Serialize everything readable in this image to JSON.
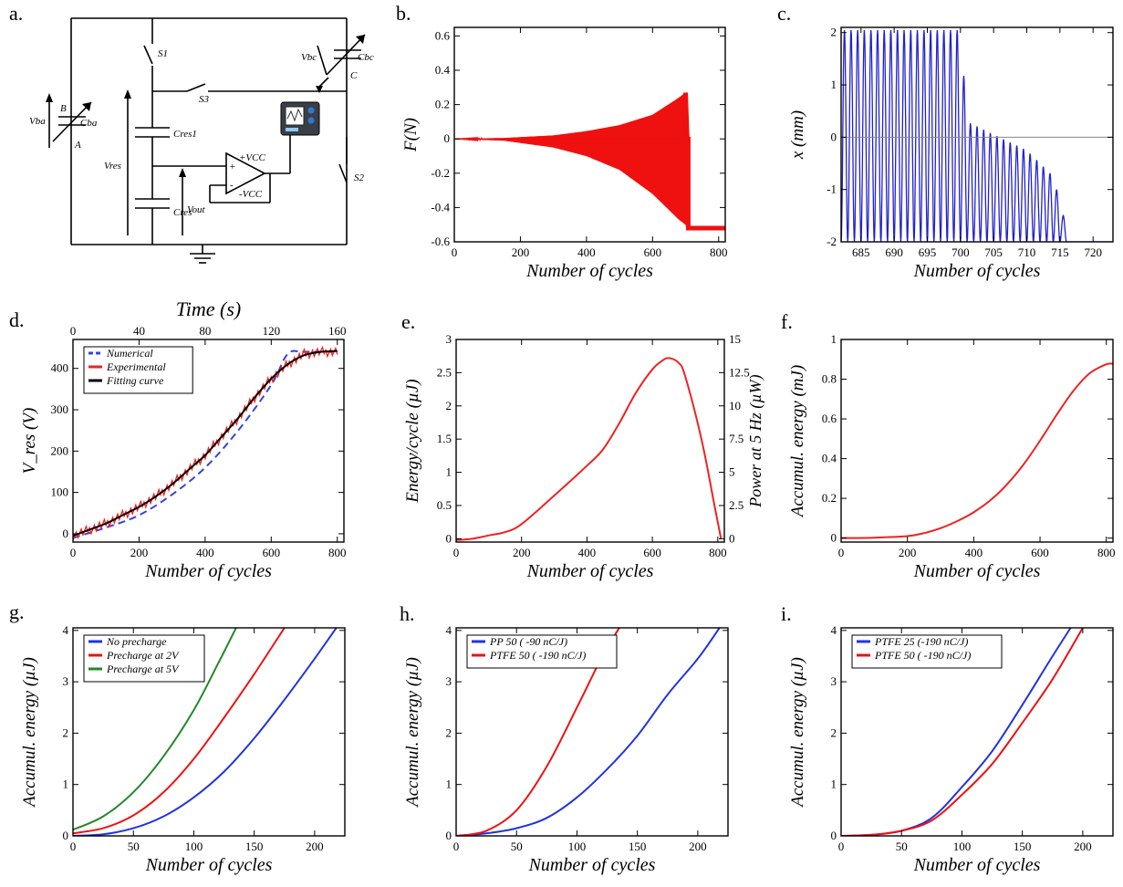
{
  "figure": {
    "panel_labels": [
      "a.",
      "b.",
      "c.",
      "d.",
      "e.",
      "f.",
      "g.",
      "h.",
      "i."
    ],
    "circuit": {
      "S1": "S1",
      "S2": "S2",
      "S3": "S3",
      "Vbc": "Vbc",
      "Cbc": "Cbc",
      "C": "C",
      "Vba": "Vba",
      "Cba": "Cba",
      "B": "B",
      "A": "A",
      "Cres1": "Cres1",
      "Vres": "Vres",
      "Cres": "Cres",
      "Vout": "Vout",
      "plusVcc": "+VCC",
      "minusVcc": "-VCC",
      "plus": "+",
      "minus": "-"
    }
  },
  "chart_data": [
    {
      "id": "b",
      "type": "area",
      "title": "",
      "xlabel": "Number of cycles",
      "ylabel": "F(N)",
      "xlim": [
        0,
        820
      ],
      "ylim": [
        -0.6,
        0.65
      ],
      "xticks": [
        0,
        200,
        400,
        600,
        800
      ],
      "yticks": [
        0.6,
        0.4,
        0.2,
        0,
        -0.2,
        -0.4,
        -0.6
      ],
      "grid": false,
      "color": "#ee1111",
      "envelope": {
        "x": [
          0,
          150,
          300,
          400,
          500,
          600,
          680,
          700,
          705,
          710,
          820
        ],
        "upper": [
          0,
          0.005,
          0.02,
          0.045,
          0.08,
          0.14,
          0.24,
          0.27,
          0.0,
          0.0,
          0.0
        ],
        "lower": [
          0,
          -0.01,
          -0.05,
          -0.1,
          -0.18,
          -0.32,
          -0.47,
          -0.5,
          -0.52,
          -0.52,
          -0.52
        ]
      }
    },
    {
      "id": "c",
      "type": "line",
      "title": "",
      "xlabel": "Number of cycles",
      "ylabel": "x (mm)",
      "xlim": [
        682,
        723
      ],
      "ylim": [
        -2,
        2.1
      ],
      "xticks": [
        685,
        690,
        695,
        700,
        705,
        710,
        715,
        720
      ],
      "yticks": [
        2,
        1,
        0,
        -1,
        -2
      ],
      "grid": false,
      "color": "#2222cc",
      "oscillation": {
        "x": [
          682,
          700,
          701,
          705,
          710,
          714,
          716.5,
          723
        ],
        "peak": [
          2.05,
          2.05,
          0.3,
          0.05,
          -0.25,
          -0.75,
          -2,
          -2
        ],
        "trough": [
          -2,
          -2,
          -2,
          -2,
          -2,
          -2,
          -2,
          -2
        ]
      }
    },
    {
      "id": "d",
      "type": "line",
      "title": "",
      "xlabel": "Number of cycles",
      "ylabel": "V_res (V)",
      "x2label": "Time (s)",
      "xlim": [
        0,
        820
      ],
      "ylim": [
        -20,
        470
      ],
      "xticks": [
        0,
        200,
        400,
        600,
        800
      ],
      "yticks": [
        400,
        300,
        200,
        100,
        0
      ],
      "x2ticks": [
        0,
        40,
        80,
        120,
        160
      ],
      "legend": "top-left",
      "grid": false,
      "series": [
        {
          "name": "Numerical",
          "color": "#3344dd",
          "x": [
            0,
            100,
            200,
            300,
            400,
            500,
            600,
            650,
            700,
            800
          ],
          "y": [
            -10,
            15,
            45,
            95,
            160,
            250,
            360,
            435,
            440,
            440
          ]
        },
        {
          "name": "Experimental",
          "color": "#ee2222",
          "x": [
            0,
            50,
            100,
            150,
            200,
            250,
            300,
            350,
            400,
            450,
            500,
            550,
            600,
            650,
            700,
            750,
            800
          ],
          "y": [
            -5,
            10,
            25,
            45,
            65,
            90,
            120,
            155,
            190,
            235,
            280,
            330,
            375,
            410,
            435,
            440,
            440
          ]
        },
        {
          "name": "Fitting curve",
          "color": "#000000",
          "x": [
            0,
            50,
            100,
            150,
            200,
            250,
            300,
            350,
            400,
            450,
            500,
            550,
            600,
            650,
            700,
            750,
            800
          ],
          "y": [
            -5,
            10,
            25,
            45,
            65,
            90,
            120,
            155,
            190,
            235,
            280,
            330,
            375,
            410,
            432,
            440,
            442
          ]
        }
      ]
    },
    {
      "id": "e",
      "type": "line",
      "title": "",
      "xlabel": "Number of cycles",
      "ylabel": "Energy/cycle (µJ)",
      "y2label": "Power at 5 Hz (µW)",
      "xlim": [
        0,
        820
      ],
      "ylim": [
        -0.05,
        3
      ],
      "xticks": [
        0,
        200,
        400,
        600,
        800
      ],
      "yticks": [
        3,
        2.5,
        2,
        1.5,
        1,
        0.5,
        0
      ],
      "y2ticks": [
        15,
        12.5,
        10,
        7.5,
        5,
        2.5,
        0
      ],
      "grid": false,
      "series": [
        {
          "name": "",
          "color": "#ee2222",
          "x": [
            0,
            50,
            100,
            150,
            200,
            300,
            400,
            450,
            500,
            550,
            600,
            630,
            650,
            680,
            700,
            750,
            790,
            810
          ],
          "y": [
            -0.02,
            0.0,
            0.05,
            0.1,
            0.22,
            0.65,
            1.1,
            1.35,
            1.75,
            2.2,
            2.55,
            2.68,
            2.72,
            2.65,
            2.45,
            1.5,
            0.5,
            0.0
          ]
        }
      ]
    },
    {
      "id": "f",
      "type": "line",
      "title": "",
      "xlabel": "Number of cycles",
      "ylabel": "Accumul. energy (mJ)",
      "xlim": [
        0,
        820
      ],
      "ylim": [
        -0.02,
        1.0
      ],
      "xticks": [
        0,
        200,
        400,
        600,
        800
      ],
      "yticks": [
        1,
        0.8,
        0.6,
        0.4,
        0.2,
        0
      ],
      "grid": false,
      "series": [
        {
          "name": "",
          "color": "#ee2222",
          "x": [
            0,
            100,
            200,
            250,
            300,
            350,
            400,
            450,
            500,
            550,
            600,
            650,
            700,
            750,
            800,
            820
          ],
          "y": [
            0,
            0.002,
            0.01,
            0.025,
            0.05,
            0.085,
            0.13,
            0.19,
            0.27,
            0.37,
            0.49,
            0.62,
            0.74,
            0.83,
            0.875,
            0.878
          ]
        }
      ]
    },
    {
      "id": "g",
      "type": "line",
      "title": "",
      "xlabel": "Number of cycles",
      "ylabel": "Accumul. energy (µJ)",
      "xlim": [
        0,
        225
      ],
      "ylim": [
        0,
        4.05
      ],
      "xticks": [
        0,
        50,
        100,
        150,
        200
      ],
      "yticks": [
        4,
        3,
        2,
        1,
        0
      ],
      "legend": "top-left",
      "grid": false,
      "series": [
        {
          "name": "No precharge",
          "color": "#2233dd",
          "x": [
            0,
            25,
            50,
            75,
            100,
            125,
            150,
            175,
            200,
            218
          ],
          "y": [
            0,
            0.03,
            0.15,
            0.38,
            0.75,
            1.25,
            1.9,
            2.65,
            3.45,
            4.05
          ]
        },
        {
          "name": "Precharge at 2V",
          "color": "#ee1111",
          "x": [
            0,
            25,
            50,
            75,
            100,
            125,
            150,
            175
          ],
          "y": [
            0.05,
            0.15,
            0.4,
            0.85,
            1.5,
            2.3,
            3.15,
            4.05
          ]
        },
        {
          "name": "Precharge at 5V",
          "color": "#22882a",
          "x": [
            0,
            25,
            50,
            75,
            100,
            120,
            135
          ],
          "y": [
            0.12,
            0.38,
            0.85,
            1.55,
            2.45,
            3.35,
            4.05
          ]
        }
      ]
    },
    {
      "id": "h",
      "type": "line",
      "title": "",
      "xlabel": "Number of cycles",
      "ylabel": "Accumul. energy (µJ)",
      "xlim": [
        0,
        225
      ],
      "ylim": [
        0,
        4.05
      ],
      "xticks": [
        0,
        50,
        100,
        150,
        200
      ],
      "yticks": [
        4,
        3,
        2,
        1,
        0
      ],
      "legend": "top-left",
      "grid": false,
      "series": [
        {
          "name": "PP 50 ( -90 nC/J)",
          "color": "#2233dd",
          "x": [
            0,
            25,
            50,
            75,
            100,
            125,
            150,
            175,
            200,
            218
          ],
          "y": [
            0,
            0.05,
            0.15,
            0.35,
            0.75,
            1.3,
            1.95,
            2.75,
            3.45,
            4.05
          ]
        },
        {
          "name": "PTFE 50 ( -190 nC/J)",
          "color": "#ee1111",
          "x": [
            0,
            25,
            50,
            75,
            100,
            120,
            135
          ],
          "y": [
            0,
            0.1,
            0.5,
            1.35,
            2.5,
            3.45,
            4.05
          ]
        }
      ]
    },
    {
      "id": "i",
      "type": "line",
      "title": "",
      "xlabel": "Number of cycles",
      "ylabel": "Accumul. energy (µJ)",
      "xlim": [
        0,
        225
      ],
      "ylim": [
        0,
        4.05
      ],
      "xticks": [
        0,
        50,
        100,
        150,
        200
      ],
      "yticks": [
        4,
        3,
        2,
        1,
        0
      ],
      "legend": "top-left",
      "grid": false,
      "series": [
        {
          "name": "PTFE 25 (-190 nC/J)",
          "color": "#2233dd",
          "x": [
            0,
            25,
            50,
            75,
            100,
            125,
            150,
            175,
            190
          ],
          "y": [
            0,
            0.02,
            0.1,
            0.35,
            0.95,
            1.65,
            2.55,
            3.5,
            4.05
          ]
        },
        {
          "name": "PTFE 50 ( -190 nC/J)",
          "color": "#ee1111",
          "x": [
            0,
            25,
            50,
            75,
            100,
            125,
            150,
            175,
            200
          ],
          "y": [
            0,
            0.02,
            0.1,
            0.3,
            0.8,
            1.4,
            2.2,
            3.05,
            4.05
          ]
        }
      ]
    }
  ]
}
